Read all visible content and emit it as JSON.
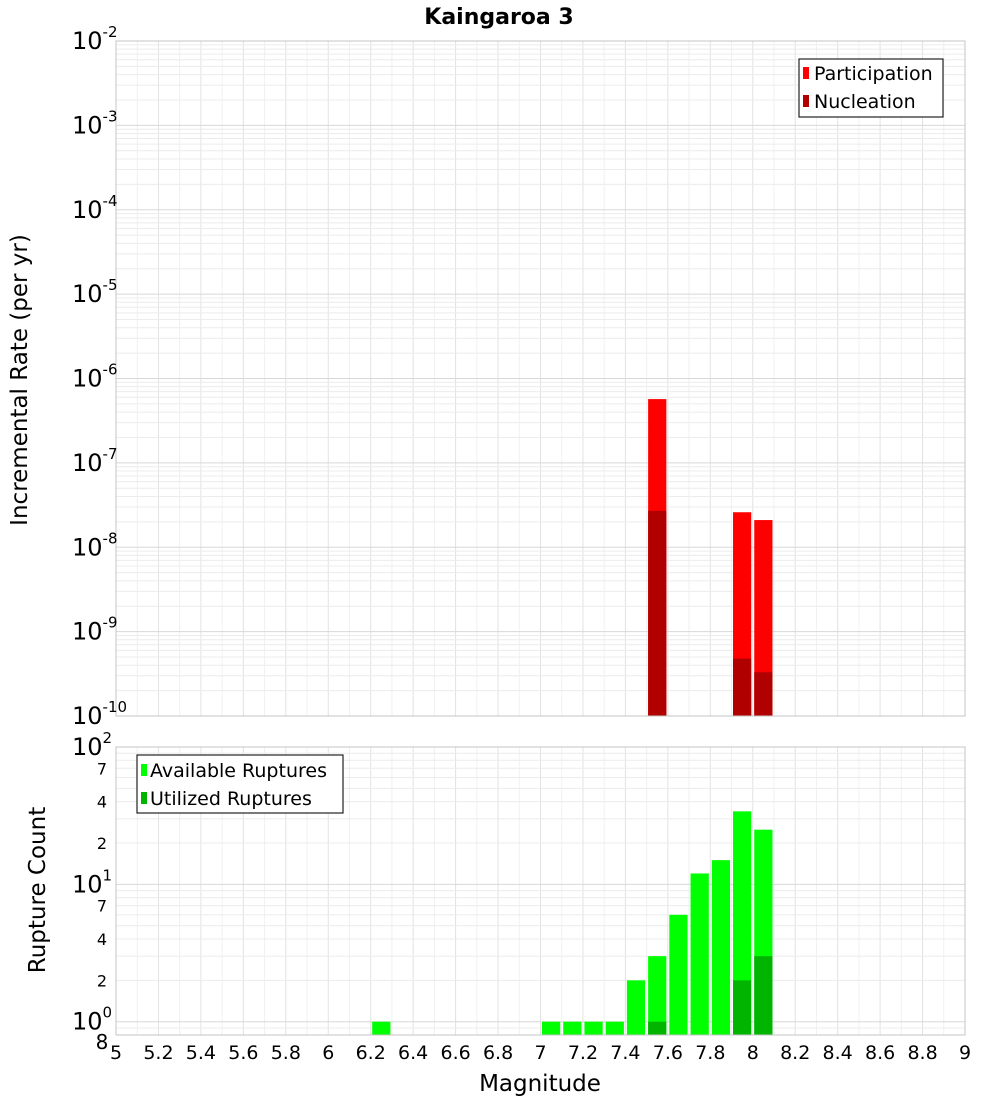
{
  "chart_data": [
    {
      "type": "bar",
      "title": "Kaingaroa 3",
      "ylabel": "Incremental Rate (per yr)",
      "xlabel": "",
      "y_scale": "log",
      "ylim": [
        1e-10,
        0.01
      ],
      "xlim": [
        5,
        9
      ],
      "y_ticks": [
        {
          "base": "10",
          "exp": "-10"
        },
        {
          "base": "10",
          "exp": "-9"
        },
        {
          "base": "10",
          "exp": "-8"
        },
        {
          "base": "10",
          "exp": "-7"
        },
        {
          "base": "10",
          "exp": "-6"
        },
        {
          "base": "10",
          "exp": "-5"
        },
        {
          "base": "10",
          "exp": "-4"
        },
        {
          "base": "10",
          "exp": "-3"
        },
        {
          "base": "10",
          "exp": "-2"
        }
      ],
      "grid": true,
      "legend_position": "top-right",
      "colors": {
        "participation": "#ff0000",
        "nucleation": "#b00000"
      },
      "series": [
        {
          "name": "Participation",
          "x": [
            7.55,
            7.95,
            8.05
          ],
          "values": [
            5.7e-07,
            2.6e-08,
            2.1e-08
          ]
        },
        {
          "name": "Nucleation",
          "x": [
            7.55,
            7.95,
            8.05
          ],
          "values": [
            2.7e-08,
            4.8e-10,
            3.3e-10
          ]
        }
      ]
    },
    {
      "type": "bar",
      "title": "",
      "ylabel": "Rupture Count",
      "xlabel": "Magnitude",
      "y_scale": "log",
      "ylim": [
        0.8,
        100
      ],
      "xlim": [
        5,
        9
      ],
      "x_ticks": [
        "5",
        "5.2",
        "5.4",
        "5.6",
        "5.8",
        "6",
        "6.2",
        "6.4",
        "6.6",
        "6.8",
        "7",
        "7.2",
        "7.4",
        "7.6",
        "7.8",
        "8",
        "8.2",
        "8.4",
        "8.6",
        "8.8",
        "9"
      ],
      "y_major_ticks": [
        {
          "base": "10",
          "exp": "0"
        },
        {
          "base": "10",
          "exp": "1"
        },
        {
          "base": "10",
          "exp": "2"
        }
      ],
      "y_minor_ticks": [
        "8",
        "2",
        "4",
        "7",
        "2",
        "4",
        "7"
      ],
      "grid": true,
      "legend_position": "top-left",
      "colors": {
        "available": "#00ff00",
        "utilized": "#00b400"
      },
      "series": [
        {
          "name": "Available Ruptures",
          "x": [
            6.25,
            7.05,
            7.15,
            7.25,
            7.35,
            7.45,
            7.55,
            7.65,
            7.75,
            7.85,
            7.95,
            8.05
          ],
          "values": [
            1,
            1,
            1,
            1,
            1,
            2,
            3,
            6,
            12,
            15,
            34,
            25
          ]
        },
        {
          "name": "Utilized Ruptures",
          "x": [
            7.55,
            7.95,
            8.05
          ],
          "values": [
            1,
            2,
            3
          ]
        }
      ]
    }
  ]
}
